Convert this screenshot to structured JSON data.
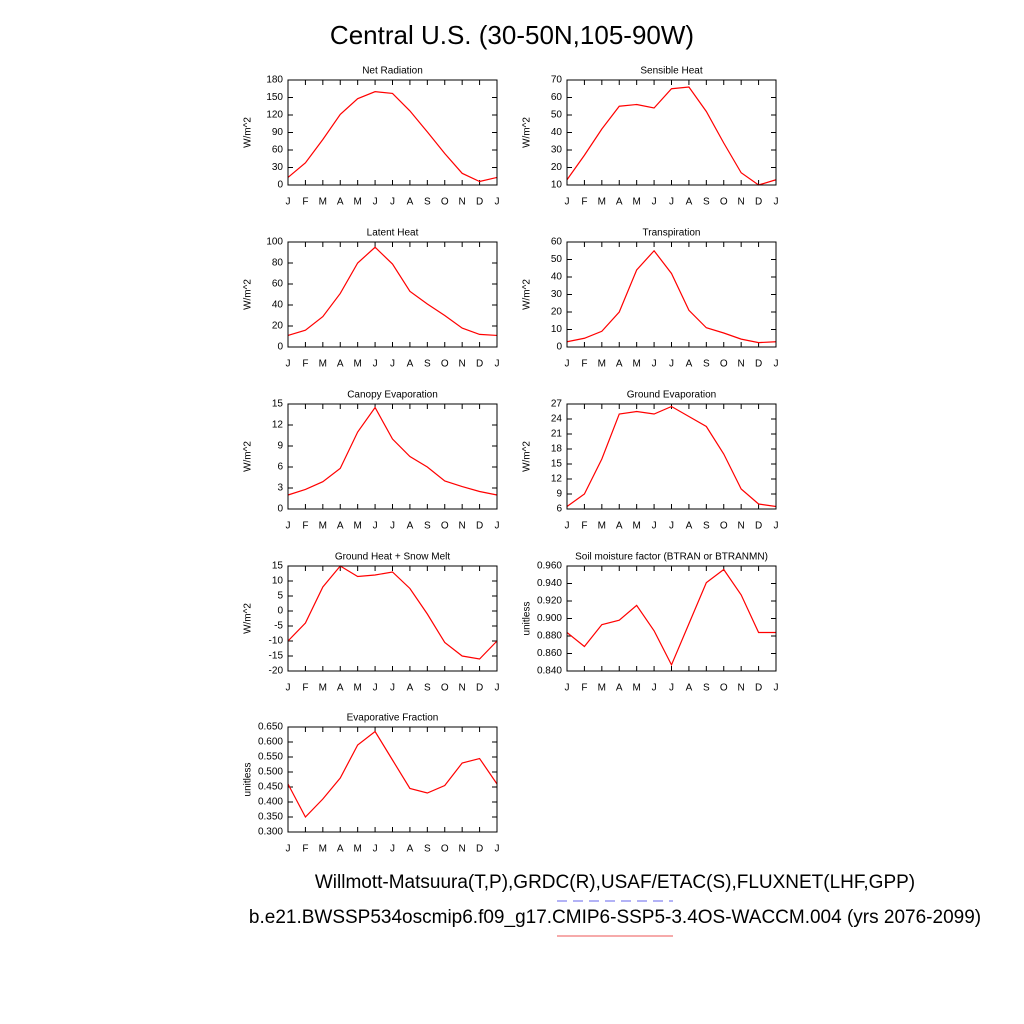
{
  "title": "Central U.S. (30-50N,105-90W)",
  "footer": [
    {
      "text": "Willmott-Matsuura(T,P),GRDC(R),USAF/ETAC(S),FLUXNET(LHF,GPP)",
      "color": "#6666ee",
      "dashed": true
    },
    {
      "text": "b.e21.BWSSP534oscmip6.f09_g17.CMIP6-SSP5-3.4OS-WACCM.004 (yrs 2076-2099)",
      "color": "#ee5555",
      "dashed": false
    }
  ],
  "chart_data": [
    {
      "type": "line",
      "title": "Net Radiation",
      "y_label": "W/m^2",
      "color": "#ff0000",
      "categories": [
        "J",
        "F",
        "M",
        "A",
        "M",
        "J",
        "J",
        "A",
        "S",
        "O",
        "N",
        "D",
        "J"
      ],
      "values": [
        13,
        38,
        78,
        121,
        148,
        160,
        157,
        127,
        91,
        54,
        20,
        6,
        13
      ],
      "ylim": [
        0,
        180
      ],
      "yticks": [
        0,
        30,
        60,
        90,
        120,
        150,
        180
      ]
    },
    {
      "type": "line",
      "title": "Sensible Heat",
      "y_label": "W/m^2",
      "color": "#ff0000",
      "categories": [
        "J",
        "F",
        "M",
        "A",
        "M",
        "J",
        "J",
        "A",
        "S",
        "O",
        "N",
        "D",
        "J"
      ],
      "values": [
        13,
        27,
        42,
        55,
        56,
        54,
        65,
        66,
        52,
        34,
        17,
        10,
        13
      ],
      "ylim": [
        10,
        70
      ],
      "yticks": [
        10,
        20,
        30,
        40,
        50,
        60,
        70
      ]
    },
    {
      "type": "line",
      "title": "Latent Heat",
      "y_label": "W/m^2",
      "color": "#ff0000",
      "categories": [
        "J",
        "F",
        "M",
        "A",
        "M",
        "J",
        "J",
        "A",
        "S",
        "O",
        "N",
        "D",
        "J"
      ],
      "values": [
        11,
        16,
        29,
        51,
        80,
        95,
        79,
        53,
        41,
        30,
        18,
        12,
        11
      ],
      "ylim": [
        0,
        100
      ],
      "yticks": [
        0,
        20,
        40,
        60,
        80,
        100
      ]
    },
    {
      "type": "line",
      "title": "Transpiration",
      "y_label": "W/m^2",
      "color": "#ff0000",
      "categories": [
        "J",
        "F",
        "M",
        "A",
        "M",
        "J",
        "J",
        "A",
        "S",
        "O",
        "N",
        "D",
        "J"
      ],
      "values": [
        3,
        5,
        9,
        20,
        44,
        55,
        42,
        21,
        11,
        8,
        4.5,
        2.5,
        3
      ],
      "ylim": [
        0,
        60
      ],
      "yticks": [
        0,
        10,
        20,
        30,
        40,
        50,
        60
      ]
    },
    {
      "type": "line",
      "title": "Canopy Evaporation",
      "y_label": "W/m^2",
      "color": "#ff0000",
      "categories": [
        "J",
        "F",
        "M",
        "A",
        "M",
        "J",
        "J",
        "A",
        "S",
        "O",
        "N",
        "D",
        "J"
      ],
      "values": [
        2,
        2.8,
        3.9,
        5.8,
        11,
        14.5,
        10,
        7.5,
        6,
        4,
        3.2,
        2.5,
        2
      ],
      "ylim": [
        0,
        15
      ],
      "yticks": [
        0,
        3,
        6,
        9,
        12,
        15
      ]
    },
    {
      "type": "line",
      "title": "Ground Evaporation",
      "y_label": "W/m^2",
      "color": "#ff0000",
      "categories": [
        "J",
        "F",
        "M",
        "A",
        "M",
        "J",
        "J",
        "A",
        "S",
        "O",
        "N",
        "D",
        "J"
      ],
      "values": [
        6.5,
        9,
        16,
        25,
        25.5,
        25,
        26.5,
        24.5,
        22.5,
        17,
        10,
        7,
        6.5
      ],
      "ylim": [
        6,
        27
      ],
      "yticks": [
        6,
        9,
        12,
        15,
        18,
        21,
        24,
        27
      ]
    },
    {
      "type": "line",
      "title": "Ground Heat + Snow Melt",
      "y_label": "W/m^2",
      "color": "#ff0000",
      "categories": [
        "J",
        "F",
        "M",
        "A",
        "M",
        "J",
        "J",
        "A",
        "S",
        "O",
        "N",
        "D",
        "J"
      ],
      "values": [
        -10,
        -4,
        8,
        15,
        11.5,
        12,
        13,
        7.5,
        -1,
        -10.5,
        -15,
        -16,
        -10
      ],
      "ylim": [
        -20,
        15
      ],
      "yticks": [
        -20,
        -15,
        -10,
        -5,
        0,
        5,
        10,
        15
      ]
    },
    {
      "type": "line",
      "title": "Soil moisture factor (BTRAN or BTRANMN)",
      "y_label": "unitless",
      "color": "#ff0000",
      "categories": [
        "J",
        "F",
        "M",
        "A",
        "M",
        "J",
        "J",
        "A",
        "S",
        "O",
        "N",
        "D",
        "J"
      ],
      "values": [
        0.884,
        0.868,
        0.893,
        0.898,
        0.915,
        0.886,
        0.847,
        0.894,
        0.941,
        0.956,
        0.927,
        0.884,
        0.884
      ],
      "ylim": [
        0.84,
        0.96
      ],
      "yticks": [
        {
          "value": 0.84,
          "label": "0.840"
        },
        {
          "value": 0.86,
          "label": "0.860"
        },
        {
          "value": 0.88,
          "label": "0.880"
        },
        {
          "value": 0.9,
          "label": "0.900"
        },
        {
          "value": 0.92,
          "label": "0.920"
        },
        {
          "value": 0.94,
          "label": "0.940"
        },
        {
          "value": 0.96,
          "label": "0.960"
        }
      ]
    },
    {
      "type": "line",
      "title": "Evaporative Fraction",
      "y_label": "unitless",
      "color": "#ff0000",
      "categories": [
        "J",
        "F",
        "M",
        "A",
        "M",
        "J",
        "J",
        "A",
        "S",
        "O",
        "N",
        "D",
        "J"
      ],
      "values": [
        0.46,
        0.35,
        0.41,
        0.48,
        0.59,
        0.635,
        0.54,
        0.445,
        0.43,
        0.455,
        0.53,
        0.545,
        0.46
      ],
      "ylim": [
        0.3,
        0.65
      ],
      "yticks": [
        {
          "value": 0.3,
          "label": "0.300"
        },
        {
          "value": 0.35,
          "label": "0.350"
        },
        {
          "value": 0.4,
          "label": "0.400"
        },
        {
          "value": 0.45,
          "label": "0.450"
        },
        {
          "value": 0.5,
          "label": "0.500"
        },
        {
          "value": 0.55,
          "label": "0.550"
        },
        {
          "value": 0.6,
          "label": "0.600"
        },
        {
          "value": 0.65,
          "label": "0.650"
        }
      ]
    }
  ]
}
